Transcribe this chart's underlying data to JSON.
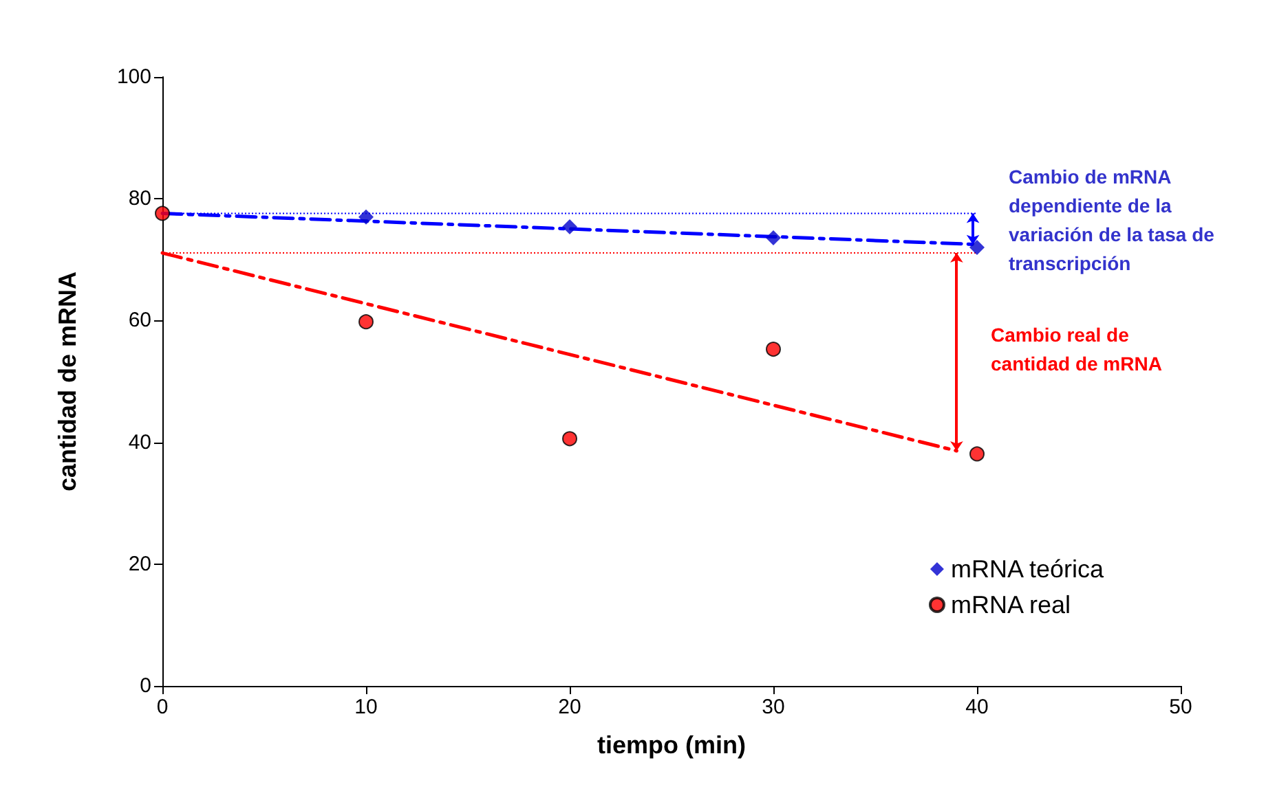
{
  "chart_data": {
    "type": "scatter",
    "xlabel": "tiempo (min)",
    "ylabel": "cantidad de mRNA",
    "x": [
      0,
      10,
      20,
      30,
      40
    ],
    "series": [
      {
        "name": "mRNA teórica",
        "color": "#0000cc",
        "marker": "diamond",
        "values": [
          null,
          77.0,
          75.4,
          73.6,
          72.0
        ]
      },
      {
        "name": "mRNA real",
        "color": "#ff0000",
        "marker": "circle",
        "values": [
          77.6,
          59.8,
          40.6,
          55.3,
          38.1
        ]
      },
      {
        "type": "line",
        "color": "#0000ff",
        "marker": "none",
        "line_style": "dashed",
        "x": [
          0,
          40
        ],
        "values": [
          77.6,
          72.5
        ]
      },
      {
        "type": "line",
        "color": "#ff0000",
        "marker": "none",
        "line_style": "dashed",
        "x": [
          0,
          39
        ],
        "values": [
          71.1,
          38.6
        ]
      }
    ],
    "ref_lines": [
      {
        "axis": "y",
        "value": 77.6,
        "color": "#0000ff",
        "line_style": "dotted"
      },
      {
        "axis": "y",
        "value": 71.1,
        "color": "#ff0000",
        "line_style": "dotted"
      }
    ],
    "annotations": [
      "Cambio de mRNA\ndependiente de la\nvariación de la tasa de\ntranscripción",
      "Cambio real de\ncantidad de mRNA"
    ],
    "xlim": [
      0,
      50
    ],
    "xticks": [
      0,
      10,
      20,
      30,
      40,
      50
    ],
    "ylim": [
      0,
      100
    ],
    "yticks": [
      0,
      20,
      40,
      60,
      80,
      100
    ],
    "grid": false,
    "legend": "bottom right"
  }
}
